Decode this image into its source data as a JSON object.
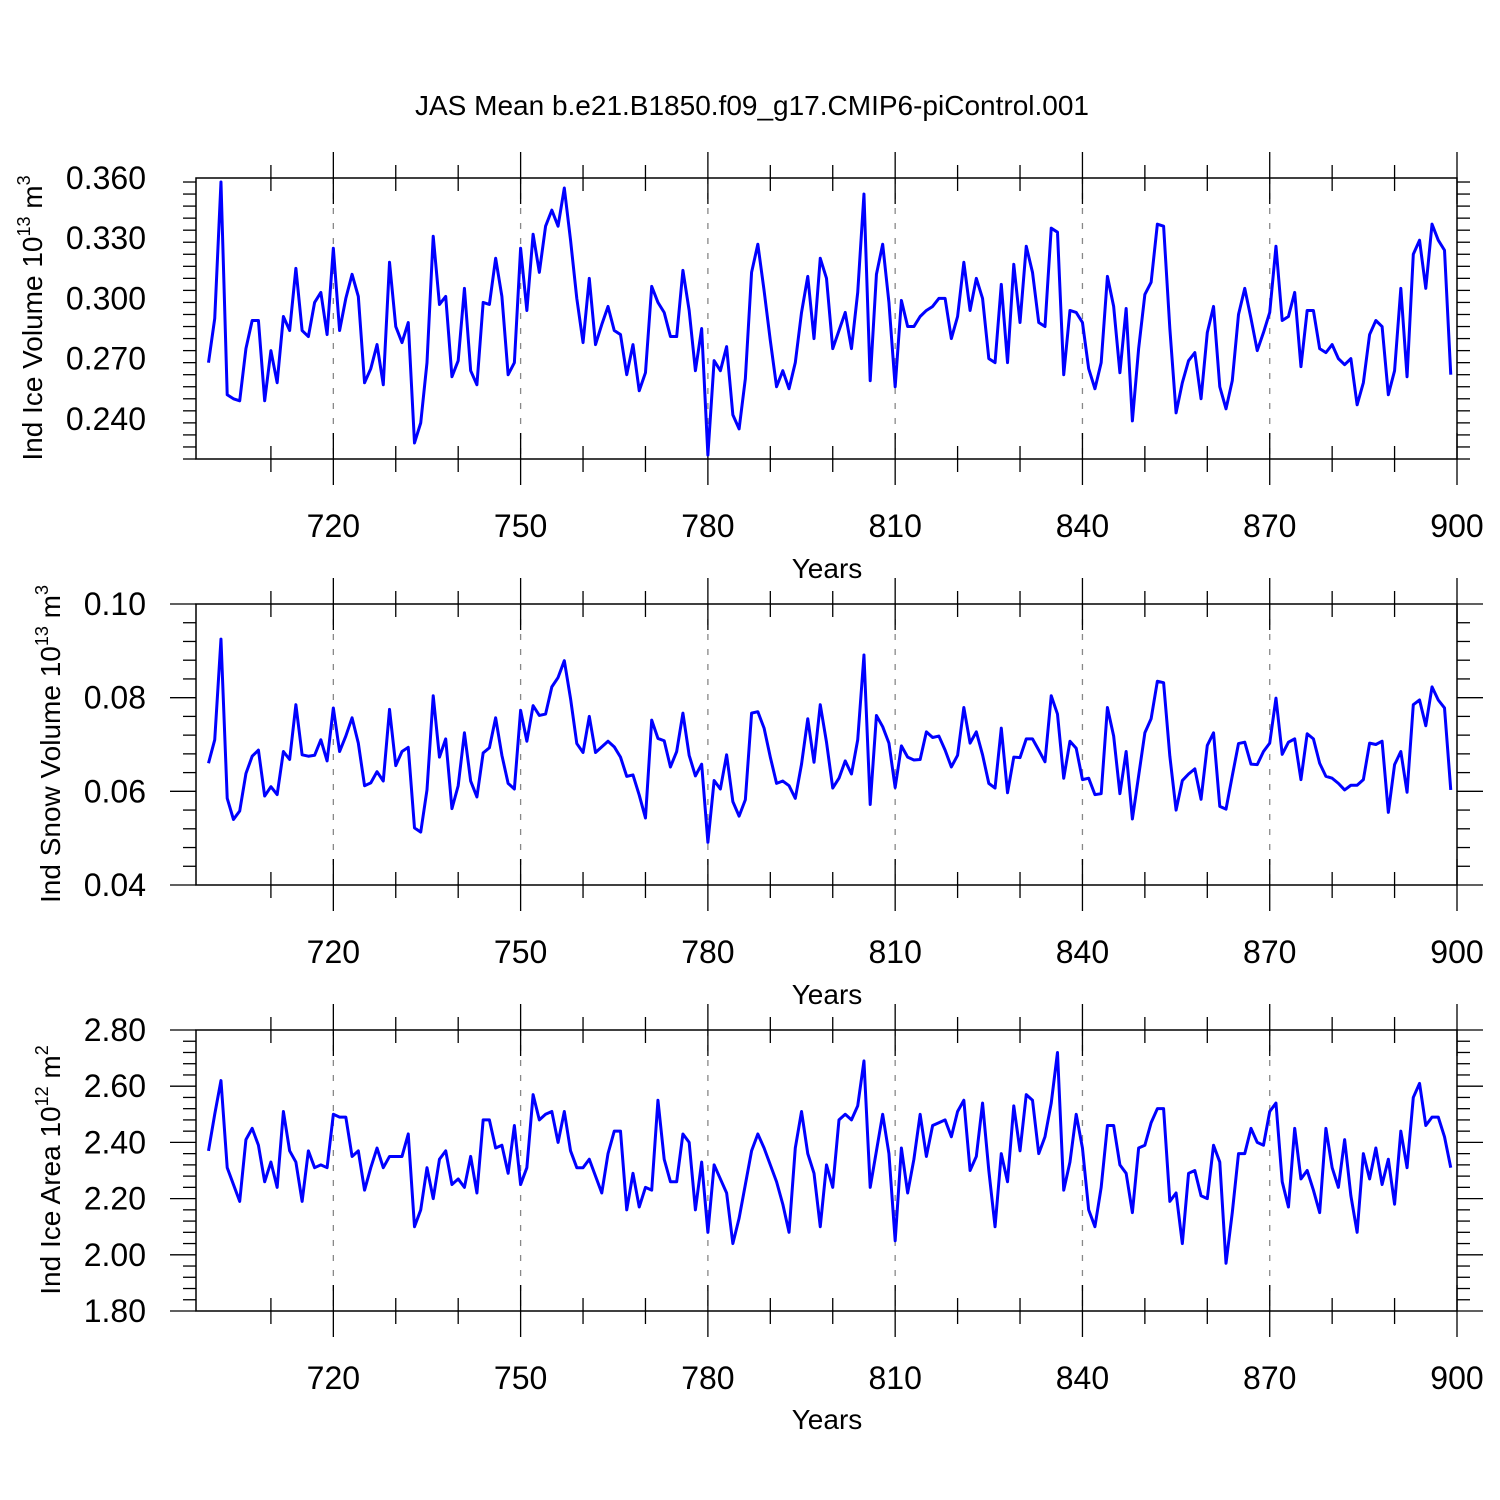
{
  "chart_data": {
    "title": "JAS Mean b.e21.B1850.f09_g17.CMIP6-piControl.001",
    "x_start": 700,
    "xlim": [
      698,
      900
    ],
    "x_ticks": [
      720,
      750,
      780,
      810,
      840,
      870,
      900
    ],
    "x_tick_labels": [
      "720",
      "750",
      "780",
      "810",
      "840",
      "870",
      "900"
    ],
    "line_color": "#0000ff",
    "panels": [
      {
        "type": "line",
        "ylabel": "Ind Ice Volume 10",
        "ylabel_exp": "13",
        "ylabel_unit": " m",
        "ylabel_unit_exp": "3",
        "xlabel": "Years",
        "ylim": [
          0.22,
          0.36
        ],
        "y_ticks": [
          0.24,
          0.27,
          0.3,
          0.33,
          0.36
        ],
        "y_tick_labels": [
          "0.240",
          "0.270",
          "0.300",
          "0.330",
          "0.360"
        ],
        "values": [
          0.268,
          0.29,
          0.358,
          0.252,
          0.25,
          0.249,
          0.275,
          0.289,
          0.289,
          0.249,
          0.274,
          0.258,
          0.291,
          0.284,
          0.315,
          0.284,
          0.281,
          0.298,
          0.303,
          0.282,
          0.325,
          0.284,
          0.3,
          0.312,
          0.301,
          0.258,
          0.265,
          0.277,
          0.257,
          0.318,
          0.286,
          0.278,
          0.288,
          0.228,
          0.238,
          0.268,
          0.331,
          0.297,
          0.301,
          0.261,
          0.269,
          0.305,
          0.264,
          0.257,
          0.298,
          0.297,
          0.32,
          0.301,
          0.262,
          0.268,
          0.325,
          0.294,
          0.332,
          0.313,
          0.336,
          0.344,
          0.336,
          0.355,
          0.329,
          0.3,
          0.278,
          0.31,
          0.277,
          0.287,
          0.296,
          0.284,
          0.282,
          0.262,
          0.277,
          0.254,
          0.263,
          0.306,
          0.298,
          0.293,
          0.281,
          0.281,
          0.314,
          0.294,
          0.264,
          0.285,
          0.222,
          0.269,
          0.264,
          0.276,
          0.242,
          0.235,
          0.26,
          0.313,
          0.327,
          0.304,
          0.279,
          0.256,
          0.264,
          0.255,
          0.268,
          0.293,
          0.311,
          0.28,
          0.32,
          0.31,
          0.275,
          0.284,
          0.293,
          0.275,
          0.303,
          0.352,
          0.259,
          0.312,
          0.327,
          0.298,
          0.256,
          0.299,
          0.286,
          0.286,
          0.291,
          0.294,
          0.296,
          0.3,
          0.3,
          0.28,
          0.291,
          0.318,
          0.294,
          0.31,
          0.3,
          0.27,
          0.268,
          0.307,
          0.268,
          0.317,
          0.288,
          0.326,
          0.313,
          0.288,
          0.286,
          0.335,
          0.333,
          0.262,
          0.294,
          0.293,
          0.288,
          0.265,
          0.255,
          0.268,
          0.311,
          0.296,
          0.263,
          0.295,
          0.239,
          0.275,
          0.302,
          0.308,
          0.337,
          0.336,
          0.285,
          0.243,
          0.258,
          0.269,
          0.273,
          0.25,
          0.283,
          0.296,
          0.256,
          0.245,
          0.259,
          0.292,
          0.305,
          0.29,
          0.274,
          0.283,
          0.293,
          0.326,
          0.289,
          0.291,
          0.303,
          0.266,
          0.294,
          0.294,
          0.275,
          0.273,
          0.277,
          0.27,
          0.267,
          0.27,
          0.247,
          0.258,
          0.282,
          0.289,
          0.286,
          0.252,
          0.264,
          0.305,
          0.261,
          0.322,
          0.329,
          0.305,
          0.337,
          0.329,
          0.324,
          0.262
        ]
      },
      {
        "type": "line",
        "ylabel": "Ind Snow Volume 10",
        "ylabel_exp": "13",
        "ylabel_unit": " m",
        "ylabel_unit_exp": "3",
        "xlabel": "Years",
        "ylim": [
          0.04,
          0.1
        ],
        "y_ticks": [
          0.04,
          0.06,
          0.08,
          0.1
        ],
        "y_tick_labels": [
          "0.04",
          "0.06",
          "0.08",
          "0.10"
        ],
        "values": [
          0.066,
          0.071,
          0.0925,
          0.0585,
          0.054,
          0.0558,
          0.0638,
          0.0675,
          0.0688,
          0.059,
          0.061,
          0.0593,
          0.0685,
          0.0668,
          0.0785,
          0.0678,
          0.0675,
          0.0677,
          0.071,
          0.0665,
          0.0778,
          0.0685,
          0.0718,
          0.0757,
          0.0703,
          0.0612,
          0.0618,
          0.0642,
          0.0622,
          0.0775,
          0.0655,
          0.0685,
          0.0694,
          0.0522,
          0.0513,
          0.0603,
          0.0804,
          0.0673,
          0.0712,
          0.0563,
          0.0612,
          0.0725,
          0.0622,
          0.0588,
          0.0682,
          0.0693,
          0.0757,
          0.0677,
          0.0617,
          0.0605,
          0.0773,
          0.0707,
          0.0783,
          0.0762,
          0.0765,
          0.0823,
          0.0843,
          0.0879,
          0.0798,
          0.0702,
          0.0683,
          0.076,
          0.0683,
          0.0695,
          0.0707,
          0.0695,
          0.0673,
          0.0632,
          0.0635,
          0.0592,
          0.0543,
          0.0752,
          0.0713,
          0.0708,
          0.0652,
          0.0685,
          0.0767,
          0.0677,
          0.0633,
          0.0658,
          0.0491,
          0.0623,
          0.0605,
          0.0678,
          0.0578,
          0.0547,
          0.0582,
          0.0767,
          0.077,
          0.0735,
          0.0673,
          0.0617,
          0.0622,
          0.0612,
          0.0585,
          0.0658,
          0.0755,
          0.0662,
          0.0785,
          0.0705,
          0.0607,
          0.0628,
          0.0665,
          0.0637,
          0.071,
          0.0891,
          0.0572,
          0.0762,
          0.0738,
          0.0703,
          0.0608,
          0.0697,
          0.0673,
          0.0667,
          0.0668,
          0.0727,
          0.0715,
          0.0718,
          0.0688,
          0.0652,
          0.0677,
          0.0779,
          0.0703,
          0.0727,
          0.0678,
          0.0617,
          0.0607,
          0.0735,
          0.0597,
          0.0673,
          0.0672,
          0.0712,
          0.0712,
          0.0688,
          0.0663,
          0.0804,
          0.0765,
          0.0628,
          0.0707,
          0.0692,
          0.0625,
          0.0628,
          0.0593,
          0.0595,
          0.0779,
          0.0718,
          0.0595,
          0.0685,
          0.0541,
          0.0633,
          0.0725,
          0.0755,
          0.0835,
          0.0832,
          0.0675,
          0.056,
          0.0623,
          0.0637,
          0.0648,
          0.0583,
          0.0698,
          0.0725,
          0.0568,
          0.0562,
          0.0633,
          0.0702,
          0.0705,
          0.0658,
          0.0657,
          0.0685,
          0.0703,
          0.0799,
          0.0679,
          0.0705,
          0.0712,
          0.0625,
          0.0723,
          0.0712,
          0.066,
          0.0632,
          0.0628,
          0.0617,
          0.0603,
          0.0613,
          0.0613,
          0.0625,
          0.0703,
          0.07,
          0.0707,
          0.0555,
          0.0657,
          0.0685,
          0.0598,
          0.0785,
          0.0795,
          0.074,
          0.0823,
          0.0795,
          0.0778,
          0.0603
        ]
      },
      {
        "type": "line",
        "ylabel": "Ind Ice Area 10",
        "ylabel_exp": "12",
        "ylabel_unit": " m",
        "ylabel_unit_exp": "2",
        "xlabel": "Years",
        "ylim": [
          1.8,
          2.8
        ],
        "y_ticks": [
          1.8,
          2.0,
          2.2,
          2.4,
          2.6,
          2.8
        ],
        "y_tick_labels": [
          "1.80",
          "2.00",
          "2.20",
          "2.40",
          "2.60",
          "2.80"
        ],
        "values": [
          2.37,
          2.5,
          2.62,
          2.31,
          2.25,
          2.19,
          2.41,
          2.45,
          2.39,
          2.26,
          2.33,
          2.24,
          2.51,
          2.37,
          2.33,
          2.19,
          2.37,
          2.31,
          2.32,
          2.31,
          2.5,
          2.49,
          2.49,
          2.35,
          2.37,
          2.23,
          2.31,
          2.38,
          2.31,
          2.35,
          2.35,
          2.35,
          2.43,
          2.1,
          2.16,
          2.31,
          2.2,
          2.34,
          2.37,
          2.25,
          2.27,
          2.24,
          2.35,
          2.22,
          2.48,
          2.48,
          2.38,
          2.39,
          2.29,
          2.46,
          2.25,
          2.31,
          2.57,
          2.48,
          2.5,
          2.51,
          2.4,
          2.51,
          2.37,
          2.31,
          2.31,
          2.34,
          2.28,
          2.22,
          2.36,
          2.44,
          2.44,
          2.16,
          2.29,
          2.17,
          2.24,
          2.23,
          2.55,
          2.34,
          2.26,
          2.26,
          2.43,
          2.4,
          2.16,
          2.33,
          2.08,
          2.32,
          2.27,
          2.22,
          2.04,
          2.13,
          2.25,
          2.37,
          2.43,
          2.38,
          2.32,
          2.26,
          2.18,
          2.08,
          2.38,
          2.51,
          2.36,
          2.29,
          2.1,
          2.32,
          2.24,
          2.48,
          2.5,
          2.48,
          2.53,
          2.69,
          2.24,
          2.37,
          2.5,
          2.36,
          2.05,
          2.38,
          2.22,
          2.34,
          2.5,
          2.35,
          2.46,
          2.47,
          2.48,
          2.42,
          2.51,
          2.55,
          2.3,
          2.35,
          2.54,
          2.3,
          2.1,
          2.36,
          2.26,
          2.53,
          2.37,
          2.57,
          2.55,
          2.36,
          2.42,
          2.54,
          2.72,
          2.23,
          2.33,
          2.5,
          2.38,
          2.16,
          2.1,
          2.24,
          2.46,
          2.46,
          2.32,
          2.29,
          2.15,
          2.38,
          2.39,
          2.47,
          2.52,
          2.52,
          2.19,
          2.22,
          2.04,
          2.29,
          2.3,
          2.21,
          2.2,
          2.39,
          2.33,
          1.97,
          2.15,
          2.36,
          2.36,
          2.45,
          2.4,
          2.39,
          2.51,
          2.54,
          2.26,
          2.17,
          2.45,
          2.27,
          2.3,
          2.23,
          2.15,
          2.45,
          2.31,
          2.24,
          2.41,
          2.21,
          2.08,
          2.36,
          2.27,
          2.38,
          2.25,
          2.34,
          2.18,
          2.44,
          2.31,
          2.56,
          2.61,
          2.46,
          2.49,
          2.49,
          2.42,
          2.31
        ]
      }
    ]
  }
}
